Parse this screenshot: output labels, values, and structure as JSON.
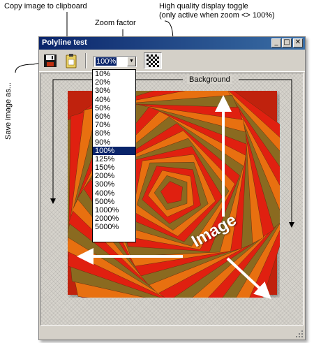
{
  "annotations": {
    "copy": "Copy image to clipboard",
    "zoom": "Zoom factor",
    "hq_line1": "High quality display toggle",
    "hq_line2": "(only active when zoom <> 100%)",
    "save": "Save image as...",
    "background": "Background",
    "image": "Image"
  },
  "window": {
    "title": "Polyline test",
    "minimize": "_",
    "maximize": "□",
    "close": "✕"
  },
  "toolbar": {
    "save_icon": "floppy-disk-icon",
    "copy_icon": "clipboard-icon",
    "zoom_value": "100%",
    "hq_icon": "checkerboard-icon"
  },
  "zoom_options": [
    "10%",
    "20%",
    "30%",
    "40%",
    "50%",
    "60%",
    "70%",
    "80%",
    "90%",
    "100%",
    "125%",
    "150%",
    "200%",
    "300%",
    "400%",
    "500%",
    "1000%",
    "2000%",
    "5000%"
  ],
  "zoom_selected": "100%",
  "colors": {
    "titlebar": "#0a246a",
    "selection": "#0a246a",
    "window_face": "#d4d0c8",
    "polyline_red": "#e02010",
    "polyline_orange": "#e87010",
    "polyline_olive": "#8a6a20"
  }
}
